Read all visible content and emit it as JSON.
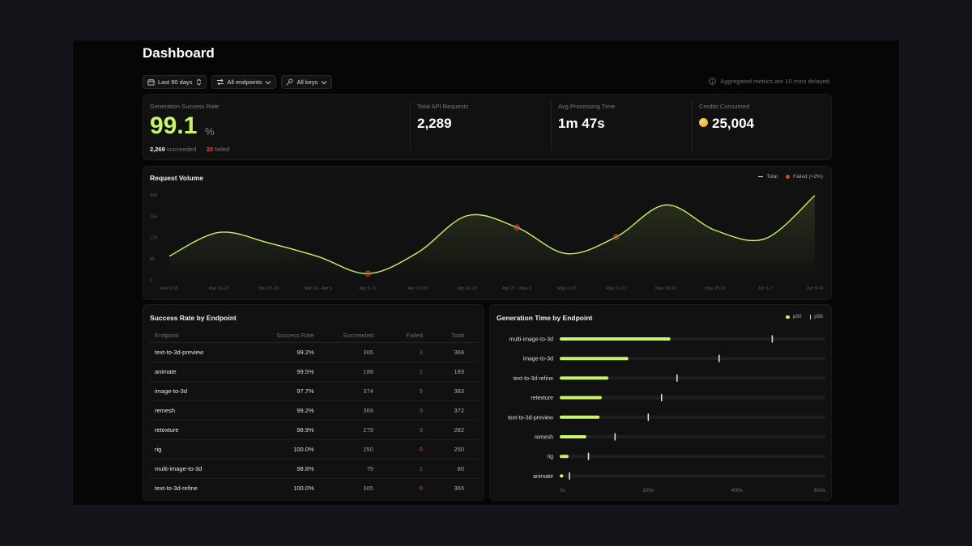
{
  "page": {
    "title": "Dashboard",
    "delay_note": "Aggregated metrics are 10 mins delayed."
  },
  "filters": {
    "range": "Last 90 days",
    "endpoints": "All endpoints",
    "keys": "All keys"
  },
  "metrics": {
    "success": {
      "label": "Generation Success Rate",
      "value": "99.1",
      "unit": "%",
      "succeeded_count": "2,269",
      "succeeded_label": "succeeded",
      "separator": "·",
      "failed_count": "20",
      "failed_label": "failed"
    },
    "requests": {
      "label": "Total API Requests",
      "value": "2,289"
    },
    "processing": {
      "label": "Avg Processing Time",
      "value": "1m 47s"
    },
    "credits": {
      "label": "Credits Consumed",
      "value": "25,004",
      "icon": "coin-icon"
    }
  },
  "chart_data": [
    {
      "type": "area",
      "title": "Request Volume",
      "categories": [
        "Mar 9-15",
        "Mar 16-22",
        "Mar 23-29",
        "Mar 30 - Apr 5",
        "Apr 6-12",
        "Apr 13-19",
        "Apr 20-26",
        "Apr 27 - May 3",
        "May 4-10",
        "May 11-17",
        "May 18-24",
        "May 25-31",
        "Jun 1-7",
        "Jun 8-14"
      ],
      "series": [
        {
          "name": "Total",
          "values": [
            95,
            190,
            148,
            93,
            25,
            109,
            257,
            210,
            105,
            172,
            300,
            198,
            165,
            338
          ]
        },
        {
          "name": "Failed (>2%)",
          "points": [
            {
              "x": "Apr 6-12",
              "y": 25
            },
            {
              "x": "Apr 27 - May 3",
              "y": 210
            },
            {
              "x": "May 11-17",
              "y": 172
            }
          ]
        }
      ],
      "y_ticks": [
        0,
        85,
        170,
        255,
        340
      ],
      "ylim": [
        0,
        340
      ],
      "legend": "top-right",
      "colors": {
        "line": "#c8f56a",
        "failed": "#d9453a"
      }
    },
    {
      "type": "bar",
      "title": "Generation Time by Endpoint",
      "categories": [
        "multi-image-to-3d",
        "image-to-3d",
        "text-to-3d-refine",
        "retexture",
        "text-to-3d-preview",
        "remesh",
        "rig",
        "animate"
      ],
      "series": [
        {
          "name": "p50",
          "values": [
            250,
            155,
            110,
            95,
            90,
            60,
            20,
            8
          ]
        },
        {
          "name": "p95",
          "values": [
            480,
            360,
            265,
            230,
            200,
            125,
            65,
            22
          ]
        }
      ],
      "x_ticks": [
        "0s",
        "200s",
        "400s",
        "600s"
      ],
      "xlim": [
        0,
        600
      ],
      "legend": "top-right",
      "colors": {
        "p50": "#c8f56a",
        "p95": "#e8e8e8"
      }
    }
  ],
  "endpoint_table": {
    "title": "Success Rate by Endpoint",
    "headers": [
      "Endpoint",
      "Success Rate",
      "Succeeded",
      "Failed",
      "Total"
    ],
    "rows": [
      [
        "text-to-3d-preview",
        "99.2%",
        "365",
        "3",
        "368"
      ],
      [
        "animate",
        "99.5%",
        "188",
        "1",
        "189"
      ],
      [
        "image-to-3d",
        "97.7%",
        "374",
        "9",
        "383"
      ],
      [
        "remesh",
        "99.2%",
        "369",
        "3",
        "372"
      ],
      [
        "retexture",
        "98.9%",
        "279",
        "3",
        "282"
      ],
      [
        "rig",
        "100.0%",
        "250",
        "0",
        "250"
      ],
      [
        "multi-image-to-3d",
        "98.8%",
        "79",
        "1",
        "80"
      ],
      [
        "text-to-3d-refine",
        "100.0%",
        "365",
        "0",
        "365"
      ]
    ]
  }
}
